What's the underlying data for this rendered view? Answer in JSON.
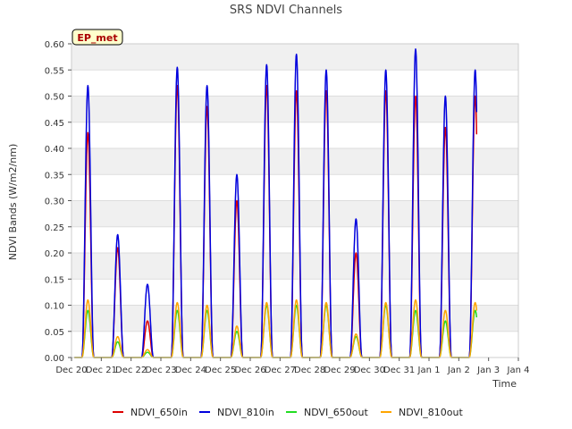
{
  "chart_data": {
    "type": "line",
    "title": "SRS NDVI Channels",
    "xlabel": "Time",
    "ylabel": "NDVI Bands (W/m2/nm)",
    "badge": "EP_met",
    "xlim": [
      0,
      15
    ],
    "ylim": [
      0,
      0.6
    ],
    "x_ticks": [
      {
        "v": 0,
        "label": "Dec 20"
      },
      {
        "v": 1,
        "label": "Dec 21"
      },
      {
        "v": 2,
        "label": "Dec 22"
      },
      {
        "v": 3,
        "label": "Dec 23"
      },
      {
        "v": 4,
        "label": "Dec 24"
      },
      {
        "v": 5,
        "label": "Dec 25"
      },
      {
        "v": 6,
        "label": "Dec 26"
      },
      {
        "v": 7,
        "label": "Dec 27"
      },
      {
        "v": 8,
        "label": "Dec 28"
      },
      {
        "v": 9,
        "label": "Dec 29"
      },
      {
        "v": 10,
        "label": "Dec 30"
      },
      {
        "v": 11,
        "label": "Dec 31"
      },
      {
        "v": 12,
        "label": "Jan 1"
      },
      {
        "v": 13,
        "label": "Jan 2"
      },
      {
        "v": 14,
        "label": "Jan 3"
      },
      {
        "v": 15,
        "label": "Jan 4"
      }
    ],
    "y_ticks": [
      {
        "v": 0.0,
        "label": "0.00"
      },
      {
        "v": 0.05,
        "label": "0.05"
      },
      {
        "v": 0.1,
        "label": "0.10"
      },
      {
        "v": 0.15,
        "label": "0.15"
      },
      {
        "v": 0.2,
        "label": "0.20"
      },
      {
        "v": 0.25,
        "label": "0.25"
      },
      {
        "v": 0.3,
        "label": "0.30"
      },
      {
        "v": 0.35,
        "label": "0.35"
      },
      {
        "v": 0.4,
        "label": "0.40"
      },
      {
        "v": 0.45,
        "label": "0.45"
      },
      {
        "v": 0.5,
        "label": "0.50"
      },
      {
        "v": 0.55,
        "label": "0.55"
      },
      {
        "v": 0.6,
        "label": "0.60"
      }
    ],
    "daily_peaks": {
      "day_offsets": [
        0.35,
        1.35,
        2.35,
        3.35,
        4.35,
        5.35,
        6.35,
        7.35,
        8.35,
        9.35,
        10.35,
        11.35,
        12.35,
        13.35
      ],
      "half_width_days": 0.2
    },
    "series": [
      {
        "name": "NDVI_650in",
        "color": "#dd0000",
        "peaks": [
          0.43,
          0.21,
          0.07,
          0.52,
          0.48,
          0.3,
          0.52,
          0.51,
          0.51,
          0.2,
          0.51,
          0.5,
          0.44,
          0.5
        ]
      },
      {
        "name": "NDVI_810in",
        "color": "#0000dd",
        "peaks": [
          0.52,
          0.235,
          0.14,
          0.555,
          0.52,
          0.35,
          0.56,
          0.58,
          0.55,
          0.265,
          0.55,
          0.59,
          0.5,
          0.55
        ]
      },
      {
        "name": "NDVI_650out",
        "color": "#22dd22",
        "peaks": [
          0.09,
          0.03,
          0.01,
          0.09,
          0.09,
          0.05,
          0.1,
          0.1,
          0.1,
          0.04,
          0.1,
          0.09,
          0.07,
          0.09
        ]
      },
      {
        "name": "NDVI_810out",
        "color": "#ffa500",
        "peaks": [
          0.11,
          0.04,
          0.015,
          0.105,
          0.1,
          0.06,
          0.105,
          0.11,
          0.105,
          0.045,
          0.105,
          0.11,
          0.09,
          0.105
        ]
      }
    ]
  }
}
